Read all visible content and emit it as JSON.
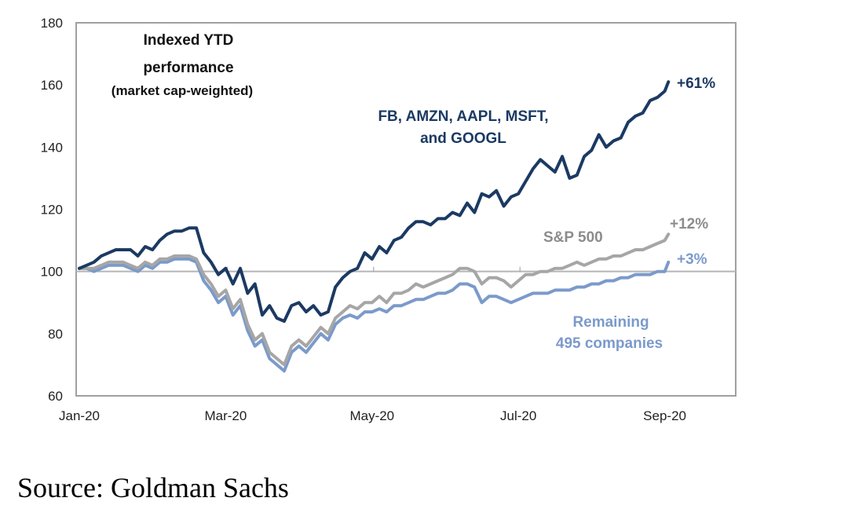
{
  "chart_data": {
    "type": "line",
    "title": [
      "Indexed YTD",
      "performance",
      "(market cap-weighted)"
    ],
    "xlabel": "",
    "ylabel": "",
    "ylim": [
      60,
      180
    ],
    "yticks": [
      60,
      80,
      100,
      120,
      140,
      160,
      180
    ],
    "xlim_months": [
      0,
      9
    ],
    "xtick_labels": [
      "Jan-20",
      "Mar-20",
      "May-20",
      "Jul-20",
      "Sep-20"
    ],
    "xtick_months": [
      0,
      2,
      4,
      6,
      8
    ],
    "grid": false,
    "reference_line": 100,
    "x_unit": "months since Jan 1, 2020",
    "series": [
      {
        "name": "FB, AMZN, AAPL, MSFT, and GOOGL",
        "label_lines": [
          "FB, AMZN, AAPL, MSFT,",
          "and GOOGL"
        ],
        "end_label": "+61%",
        "color": "#1b3a63",
        "x": [
          0,
          0.1,
          0.2,
          0.3,
          0.4,
          0.5,
          0.6,
          0.7,
          0.8,
          0.9,
          1.0,
          1.1,
          1.2,
          1.3,
          1.4,
          1.5,
          1.6,
          1.7,
          1.8,
          1.9,
          2.0,
          2.1,
          2.2,
          2.3,
          2.4,
          2.5,
          2.6,
          2.7,
          2.8,
          2.9,
          3.0,
          3.1,
          3.2,
          3.3,
          3.4,
          3.5,
          3.6,
          3.7,
          3.8,
          3.9,
          4.0,
          4.1,
          4.2,
          4.3,
          4.4,
          4.5,
          4.6,
          4.7,
          4.8,
          4.9,
          5.0,
          5.1,
          5.2,
          5.3,
          5.4,
          5.5,
          5.6,
          5.7,
          5.8,
          5.9,
          6.0,
          6.1,
          6.2,
          6.3,
          6.4,
          6.5,
          6.6,
          6.7,
          6.8,
          6.9,
          7.0,
          7.1,
          7.2,
          7.3,
          7.4,
          7.5,
          7.6,
          7.7,
          7.8,
          7.9,
          8.0,
          8.05
        ],
        "values": [
          101,
          102,
          103,
          105,
          106,
          107,
          107,
          107,
          105,
          108,
          107,
          110,
          112,
          113,
          113,
          114,
          114,
          106,
          103,
          99,
          101,
          96,
          101,
          93,
          96,
          86,
          89,
          85,
          84,
          89,
          90,
          87,
          89,
          86,
          87,
          95,
          98,
          100,
          101,
          106,
          104,
          108,
          106,
          110,
          111,
          114,
          116,
          116,
          115,
          117,
          117,
          119,
          118,
          122,
          119,
          125,
          124,
          126,
          121,
          124,
          125,
          129,
          133,
          136,
          134,
          132,
          137,
          130,
          131,
          137,
          139,
          144,
          140,
          142,
          143,
          148,
          150,
          151,
          155,
          156,
          158,
          161
        ]
      },
      {
        "name": "S&P 500",
        "label_lines": [
          "S&P 500"
        ],
        "end_label": "+12%",
        "color": "#a6a6a6",
        "x": [
          0,
          0.1,
          0.2,
          0.3,
          0.4,
          0.5,
          0.6,
          0.7,
          0.8,
          0.9,
          1.0,
          1.1,
          1.2,
          1.3,
          1.4,
          1.5,
          1.6,
          1.7,
          1.8,
          1.9,
          2.0,
          2.1,
          2.2,
          2.3,
          2.4,
          2.5,
          2.6,
          2.7,
          2.8,
          2.9,
          3.0,
          3.1,
          3.2,
          3.3,
          3.4,
          3.5,
          3.6,
          3.7,
          3.8,
          3.9,
          4.0,
          4.1,
          4.2,
          4.3,
          4.4,
          4.5,
          4.6,
          4.7,
          4.8,
          4.9,
          5.0,
          5.1,
          5.2,
          5.3,
          5.4,
          5.5,
          5.6,
          5.7,
          5.8,
          5.9,
          6.0,
          6.1,
          6.2,
          6.3,
          6.4,
          6.5,
          6.6,
          6.7,
          6.8,
          6.9,
          7.0,
          7.1,
          7.2,
          7.3,
          7.4,
          7.5,
          7.6,
          7.7,
          7.8,
          7.9,
          8.0,
          8.05
        ],
        "values": [
          101,
          101,
          101,
          102,
          103,
          103,
          103,
          102,
          101,
          103,
          102,
          104,
          104,
          105,
          105,
          105,
          104,
          99,
          96,
          92,
          94,
          88,
          91,
          83,
          78,
          80,
          74,
          72,
          70,
          76,
          78,
          76,
          79,
          82,
          80,
          85,
          87,
          89,
          88,
          90,
          90,
          92,
          90,
          93,
          93,
          94,
          96,
          95,
          96,
          97,
          98,
          99,
          101,
          101,
          100,
          96,
          98,
          98,
          97,
          95,
          97,
          99,
          99,
          100,
          100,
          101,
          101,
          102,
          103,
          102,
          103,
          104,
          104,
          105,
          105,
          106,
          107,
          107,
          108,
          109,
          110,
          112
        ]
      },
      {
        "name": "Remaining 495 companies",
        "label_lines": [
          "Remaining",
          "495 companies"
        ],
        "end_label": "+3%",
        "color": "#7b9acb",
        "x": [
          0,
          0.1,
          0.2,
          0.3,
          0.4,
          0.5,
          0.6,
          0.7,
          0.8,
          0.9,
          1.0,
          1.1,
          1.2,
          1.3,
          1.4,
          1.5,
          1.6,
          1.7,
          1.8,
          1.9,
          2.0,
          2.1,
          2.2,
          2.3,
          2.4,
          2.5,
          2.6,
          2.7,
          2.8,
          2.9,
          3.0,
          3.1,
          3.2,
          3.3,
          3.4,
          3.5,
          3.6,
          3.7,
          3.8,
          3.9,
          4.0,
          4.1,
          4.2,
          4.3,
          4.4,
          4.5,
          4.6,
          4.7,
          4.8,
          4.9,
          5.0,
          5.1,
          5.2,
          5.3,
          5.4,
          5.5,
          5.6,
          5.7,
          5.8,
          5.9,
          6.0,
          6.1,
          6.2,
          6.3,
          6.4,
          6.5,
          6.6,
          6.7,
          6.8,
          6.9,
          7.0,
          7.1,
          7.2,
          7.3,
          7.4,
          7.5,
          7.6,
          7.7,
          7.8,
          7.9,
          8.0,
          8.05
        ],
        "values": [
          101,
          101,
          100,
          101,
          102,
          102,
          102,
          101,
          100,
          102,
          101,
          103,
          103,
          104,
          104,
          104,
          103,
          97,
          94,
          90,
          92,
          86,
          89,
          81,
          76,
          78,
          72,
          70,
          68,
          74,
          76,
          74,
          77,
          80,
          78,
          83,
          85,
          86,
          85,
          87,
          87,
          88,
          87,
          89,
          89,
          90,
          91,
          91,
          92,
          93,
          93,
          94,
          96,
          96,
          95,
          90,
          92,
          92,
          91,
          90,
          91,
          92,
          93,
          93,
          93,
          94,
          94,
          94,
          95,
          95,
          96,
          96,
          97,
          97,
          98,
          98,
          99,
          99,
          99,
          100,
          100,
          103
        ]
      }
    ]
  },
  "source": "Source:  Goldman Sachs"
}
